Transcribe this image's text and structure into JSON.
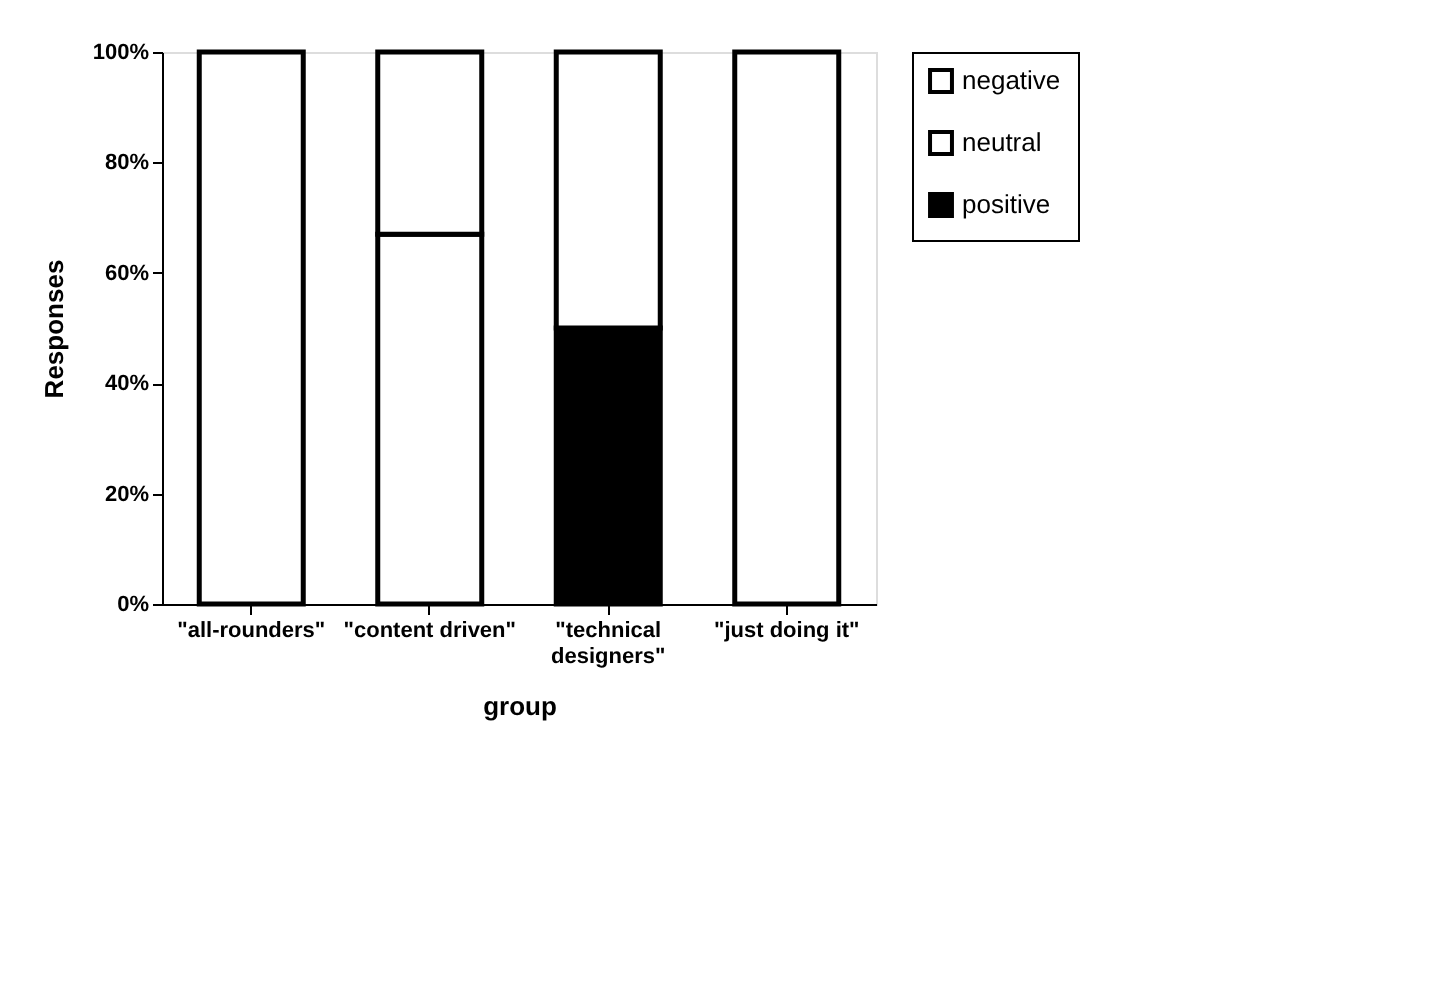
{
  "chart_data": {
    "type": "bar",
    "stacked": true,
    "xlabel": "group",
    "ylabel": "Responses",
    "categories": [
      "\"all-rounders\"",
      "\"content driven\"",
      "\"technical designers\"",
      "\"just doing it\""
    ],
    "series": [
      {
        "name": "positive",
        "color": "#000000",
        "values": [
          null,
          null,
          50,
          null
        ]
      },
      {
        "name": "neutral",
        "color": "#ffffff",
        "values": [
          100,
          67,
          50,
          null
        ]
      },
      {
        "name": "negative",
        "color": "#ffffff",
        "values": [
          null,
          33,
          null,
          100
        ]
      }
    ],
    "ylim": [
      0,
      100
    ],
    "yticks": [
      {
        "value": 0,
        "label": "0%"
      },
      {
        "value": 20,
        "label": "20%"
      },
      {
        "value": 40,
        "label": "40%"
      },
      {
        "value": 60,
        "label": "60%"
      },
      {
        "value": 80,
        "label": "80%"
      },
      {
        "value": 100,
        "label": "100%"
      }
    ],
    "grid": false,
    "legend": "top right"
  }
}
